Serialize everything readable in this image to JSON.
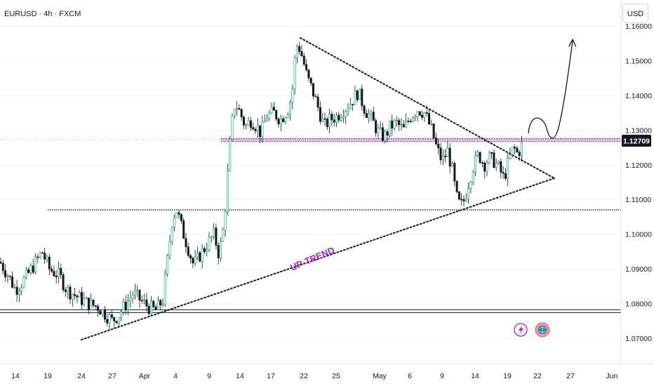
{
  "header": {
    "symbol_line": "EURUSD · 4h · FXCM"
  },
  "currency_button": {
    "label": "USD"
  },
  "price_badge": {
    "value": "1.12709",
    "color": "#131722"
  },
  "annotation": {
    "text": "UP-TREND",
    "color": "#9c27b0"
  },
  "colors": {
    "up": "#089981",
    "down": "#131722",
    "wick": "#131722",
    "trend": "#131722",
    "resistance": "#9c27b0"
  },
  "icons": [
    "lightning-icon",
    "globe-event-icon",
    "curve-arrow-icon"
  ],
  "chart_data": {
    "type": "candlestick",
    "title": "EURUSD · 4h · FXCM",
    "y_ticks": [
      "1.16000",
      "1.15000",
      "1.14000",
      "1.13000",
      "1.12000",
      "1.11000",
      "1.10000",
      "1.09000",
      "1.08000",
      "1.07000"
    ],
    "ylim": [
      1.0698,
      1.1608
    ],
    "x_ticks": [
      "14",
      "19",
      "24",
      "27",
      "Apr",
      "4",
      "9",
      "14",
      "17",
      "22",
      "25",
      "May",
      "6",
      "9",
      "14",
      "19",
      "22",
      "27",
      "Jun"
    ],
    "horizontal_levels": [
      1.1271,
      1.107,
      1.0778
    ],
    "last_price": 1.12709,
    "grid": true,
    "approx_path": [
      [
        0,
        1.092
      ],
      [
        12,
        1.088
      ],
      [
        22,
        1.084
      ],
      [
        35,
        1.087
      ],
      [
        48,
        1.091
      ],
      [
        60,
        1.095
      ],
      [
        70,
        1.09
      ],
      [
        85,
        1.088
      ],
      [
        95,
        1.084
      ],
      [
        110,
        1.082
      ],
      [
        125,
        1.08
      ],
      [
        140,
        1.079
      ],
      [
        150,
        1.077
      ],
      [
        160,
        1.075
      ],
      [
        170,
        1.077
      ],
      [
        180,
        1.08
      ],
      [
        190,
        1.083
      ],
      [
        200,
        1.081
      ],
      [
        212,
        1.079
      ],
      [
        222,
        1.078
      ],
      [
        232,
        1.081
      ],
      [
        240,
        1.095
      ],
      [
        246,
        1.105
      ],
      [
        252,
        1.107
      ],
      [
        260,
        1.101
      ],
      [
        268,
        1.096
      ],
      [
        276,
        1.091
      ],
      [
        285,
        1.094
      ],
      [
        295,
        1.097
      ],
      [
        305,
        1.1
      ],
      [
        312,
        1.094
      ],
      [
        318,
        1.101
      ],
      [
        322,
        1.11
      ],
      [
        326,
        1.122
      ],
      [
        330,
        1.131
      ],
      [
        335,
        1.138
      ],
      [
        342,
        1.135
      ],
      [
        350,
        1.131
      ],
      [
        358,
        1.133
      ],
      [
        366,
        1.131
      ],
      [
        372,
        1.129
      ],
      [
        380,
        1.134
      ],
      [
        390,
        1.135
      ],
      [
        400,
        1.133
      ],
      [
        410,
        1.136
      ],
      [
        416,
        1.14
      ],
      [
        420,
        1.15
      ],
      [
        424,
        1.155
      ],
      [
        428,
        1.153
      ],
      [
        432,
        1.15
      ],
      [
        438,
        1.145
      ],
      [
        446,
        1.141
      ],
      [
        454,
        1.136
      ],
      [
        462,
        1.131
      ],
      [
        470,
        1.133
      ],
      [
        480,
        1.134
      ],
      [
        490,
        1.136
      ],
      [
        500,
        1.138
      ],
      [
        510,
        1.141
      ],
      [
        520,
        1.136
      ],
      [
        530,
        1.133
      ],
      [
        540,
        1.129
      ],
      [
        548,
        1.128
      ],
      [
        556,
        1.131
      ],
      [
        565,
        1.132
      ],
      [
        575,
        1.13
      ],
      [
        585,
        1.134
      ],
      [
        595,
        1.136
      ],
      [
        605,
        1.135
      ],
      [
        615,
        1.13
      ],
      [
        622,
        1.125
      ],
      [
        630,
        1.121
      ],
      [
        638,
        1.124
      ],
      [
        645,
        1.118
      ],
      [
        650,
        1.111
      ],
      [
        656,
        1.108
      ],
      [
        662,
        1.11
      ],
      [
        668,
        1.115
      ],
      [
        675,
        1.12
      ],
      [
        682,
        1.123
      ],
      [
        690,
        1.12
      ],
      [
        697,
        1.122
      ],
      [
        704,
        1.121
      ],
      [
        711,
        1.119
      ],
      [
        718,
        1.116
      ],
      [
        725,
        1.121
      ],
      [
        732,
        1.125
      ],
      [
        738,
        1.123
      ],
      [
        744,
        1.126
      ]
    ]
  }
}
